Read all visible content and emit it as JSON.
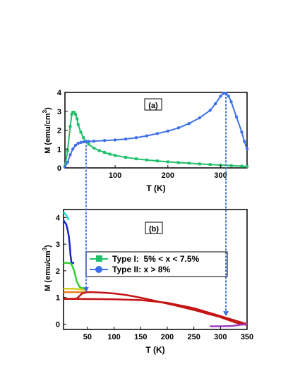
{
  "figure": {
    "connector_color": "#3b6fe0"
  },
  "chart_data": [
    {
      "panel_label": "(a)",
      "type": "line",
      "xlabel": "T (K)",
      "ylabel_main": "M (emu/cm",
      "ylabel_sup": "3",
      "ylabel_end": ")",
      "xlim": [
        5,
        350
      ],
      "ylim": [
        0,
        4
      ],
      "xticks": [
        "100",
        "200",
        "300"
      ],
      "yticks": [
        "0",
        "1",
        "2",
        "3",
        "4"
      ],
      "series": [
        {
          "color": "#1fc06a",
          "marker": "square",
          "x": [
            5,
            10,
            15,
            18,
            20,
            22,
            25,
            28,
            30,
            35,
            40,
            45,
            50,
            60,
            70,
            80,
            90,
            100,
            120,
            140,
            160,
            180,
            200,
            220,
            240,
            260,
            280,
            300,
            320,
            340,
            350
          ],
          "y": [
            0.1,
            0.9,
            2.2,
            2.85,
            2.95,
            2.95,
            2.85,
            2.6,
            2.3,
            1.9,
            1.6,
            1.4,
            1.25,
            1.05,
            0.92,
            0.82,
            0.73,
            0.66,
            0.56,
            0.48,
            0.42,
            0.37,
            0.32,
            0.28,
            0.25,
            0.21,
            0.18,
            0.15,
            0.12,
            0.09,
            0.08
          ]
        },
        {
          "color": "#3d70e8",
          "marker": "circle",
          "x": [
            5,
            10,
            15,
            20,
            25,
            30,
            35,
            40,
            45,
            50,
            60,
            80,
            100,
            120,
            140,
            160,
            180,
            200,
            220,
            240,
            260,
            280,
            290,
            300,
            305,
            310,
            315,
            320,
            330,
            340,
            345,
            350
          ],
          "y": [
            0.05,
            0.3,
            0.7,
            1.0,
            1.2,
            1.3,
            1.35,
            1.38,
            1.4,
            1.4,
            1.42,
            1.45,
            1.48,
            1.53,
            1.6,
            1.7,
            1.82,
            1.95,
            2.12,
            2.35,
            2.65,
            3.05,
            3.4,
            3.8,
            3.95,
            3.95,
            3.8,
            3.5,
            2.7,
            1.9,
            1.4,
            1.0
          ]
        }
      ]
    },
    {
      "panel_label": "(b)",
      "type": "line",
      "xlabel": "T (K)",
      "ylabel_main": "M (emu/cm",
      "ylabel_sup": "3",
      "ylabel_end": ")",
      "xlim": [
        5,
        350
      ],
      "ylim": [
        -0.2,
        4.3
      ],
      "xticks": [
        "50",
        "100",
        "150",
        "200",
        "250",
        "300",
        "350"
      ],
      "yticks": [
        "0",
        "1",
        "2",
        "3",
        "4"
      ],
      "legend_position": "center-left",
      "legend": [
        {
          "label": "Type I:  5% < x < 7.5%",
          "color": "#1fc06a",
          "marker": "square"
        },
        {
          "label": "Type II: x > 8%",
          "color": "#3d70e8",
          "marker": "circle"
        }
      ],
      "series": [
        {
          "color": "#22d3d0",
          "x": [
            5,
            10,
            15
          ],
          "y": [
            4.2,
            4.1,
            3.9
          ]
        },
        {
          "color": "#1b24c8",
          "x": [
            5,
            8,
            10,
            12,
            15,
            17,
            18,
            20,
            22,
            25
          ],
          "y": [
            3.9,
            3.8,
            3.75,
            3.6,
            3.3,
            2.9,
            2.6,
            2.3,
            2.3,
            2.3
          ]
        },
        {
          "color": "#33cc33",
          "x": [
            5,
            10,
            15,
            20,
            25,
            30,
            35,
            40,
            45,
            50
          ],
          "y": [
            2.3,
            2.3,
            2.3,
            2.25,
            2.0,
            1.6,
            1.4,
            1.35,
            1.3,
            1.25
          ]
        },
        {
          "color": "#cfcf22",
          "x": [
            5,
            10,
            20,
            30,
            40,
            45,
            50
          ],
          "y": [
            1.33,
            1.33,
            1.33,
            1.32,
            1.3,
            1.28,
            1.25
          ]
        },
        {
          "color": "#e67b1a",
          "x": [
            5,
            10,
            20,
            30,
            40,
            45
          ],
          "y": [
            1.2,
            1.2,
            1.2,
            1.2,
            1.2,
            1.2
          ]
        },
        {
          "color": "#c41414",
          "x": [
            5,
            20,
            30,
            40,
            50,
            60,
            80,
            100,
            120,
            140,
            160,
            180,
            200,
            220,
            240,
            260,
            270,
            280,
            290,
            300,
            310,
            320,
            330,
            340,
            350
          ],
          "y": [
            0.95,
            0.95,
            0.96,
            1.15,
            1.2,
            1.2,
            1.18,
            1.15,
            1.1,
            1.03,
            0.95,
            0.86,
            0.77,
            0.68,
            0.58,
            0.48,
            0.42,
            0.37,
            0.32,
            0.26,
            0.19,
            0.12,
            0.05,
            0.0,
            -0.03
          ]
        },
        {
          "color": "#c41414",
          "x": [
            5,
            50,
            100,
            150,
            200,
            250,
            300,
            350
          ],
          "y": [
            0.95,
            0.94,
            0.93,
            0.9,
            0.8,
            0.6,
            0.3,
            0.0
          ]
        },
        {
          "color": "#9b3fc4",
          "x": [
            280,
            300,
            320,
            330,
            340,
            350
          ],
          "y": [
            -0.08,
            -0.08,
            -0.07,
            -0.05,
            -0.02,
            0.0
          ]
        }
      ]
    }
  ]
}
